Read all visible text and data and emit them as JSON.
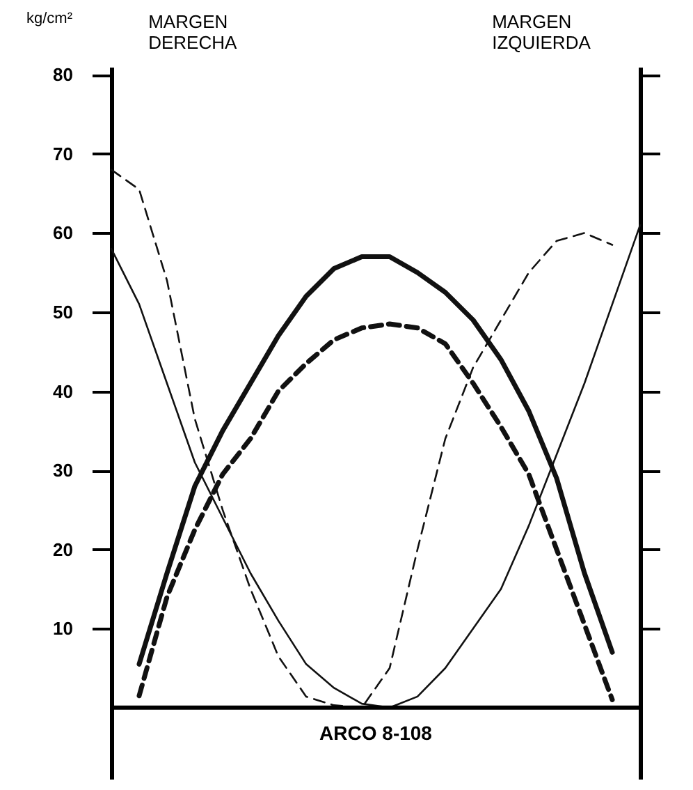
{
  "chart_data": {
    "type": "line",
    "ylabel": "kg/cm²",
    "xlabel": "ARCO 8-108",
    "annotations": [
      "MARGEN\nDERECHA",
      "MARGEN\nIZQUIERDA"
    ],
    "categories": [
      null,
      null,
      null,
      null,
      null,
      null,
      null,
      null,
      null,
      null,
      null,
      null,
      null,
      null,
      null,
      null,
      null,
      null,
      null,
      null
    ],
    "series": [
      {
        "color": "#111111",
        "line_style": "solid",
        "values": [
          null,
          5.5,
          17,
          28,
          35,
          41,
          47,
          52,
          55.5,
          57,
          57,
          55,
          52.5,
          49,
          44,
          37.5,
          29,
          17,
          7,
          null
        ]
      },
      {
        "color": "#111111",
        "line_style": "dashed",
        "values": [
          null,
          1.5,
          14,
          22.5,
          29.5,
          34,
          40,
          43.5,
          46.5,
          48,
          48.5,
          48,
          46,
          41,
          35.5,
          29.5,
          20,
          10.5,
          1,
          null
        ]
      },
      {
        "color": "#111111",
        "line_style": "solid",
        "values": [
          58,
          51,
          41,
          31,
          24,
          17,
          11,
          5.5,
          2.5,
          0.5,
          0,
          1.4,
          5,
          10,
          15,
          23,
          32,
          41,
          51,
          61
        ]
      },
      {
        "color": "#111111",
        "line_style": "dashed",
        "values": [
          68,
          65.5,
          54,
          36.5,
          25,
          15,
          6.5,
          1.4,
          0.3,
          0,
          5,
          20,
          34,
          43,
          49,
          55,
          59,
          60,
          58.5,
          null
        ]
      }
    ],
    "ylim": [
      -9,
      81
    ],
    "yticks": [
      10,
      20,
      30,
      40,
      50,
      60,
      70,
      80
    ],
    "grid": false,
    "marker": "none"
  }
}
